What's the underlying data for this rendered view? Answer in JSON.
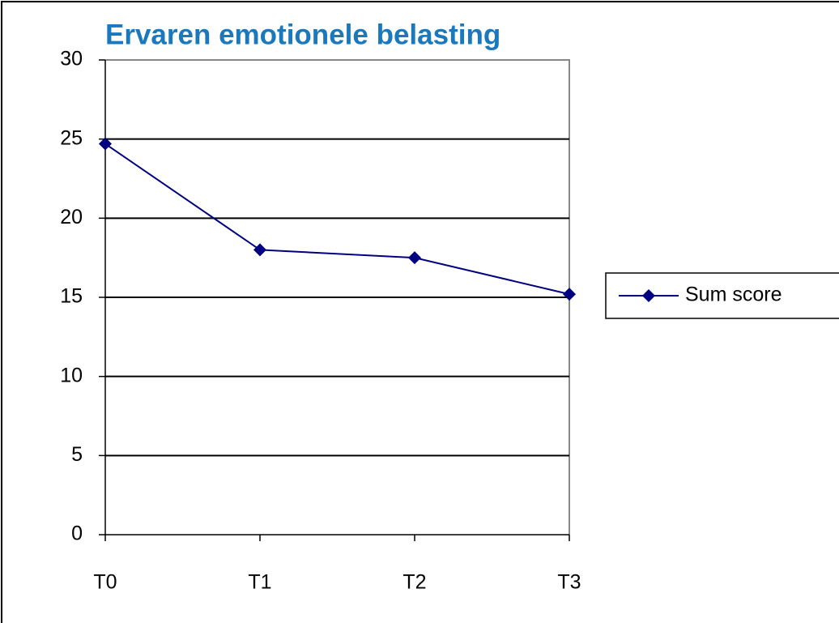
{
  "chart_data": {
    "type": "line",
    "title": "Ervaren emotionele belasting",
    "categories": [
      "T0",
      "T1",
      "T2",
      "T3"
    ],
    "series": [
      {
        "name": "Sum score",
        "color": "#000080",
        "values": [
          24.7,
          18.0,
          17.5,
          15.2
        ]
      }
    ],
    "ylim": [
      0,
      30
    ],
    "yticks": [
      0,
      5,
      10,
      15,
      20,
      25,
      30
    ],
    "grid": true,
    "legend": "right"
  }
}
